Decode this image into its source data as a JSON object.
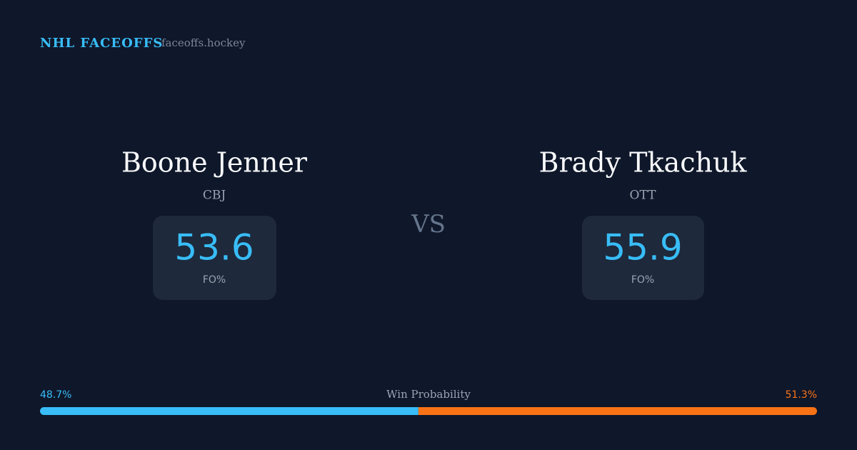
{
  "header": {
    "brand": "NHL FACEOFFS",
    "site": "faceoffs.hockey"
  },
  "players": [
    {
      "name": "Boone Jenner",
      "team": "CBJ",
      "fo_pct": 53.6,
      "fo_label": "FO%"
    },
    {
      "name": "Brady Tkachuk",
      "team": "OTT",
      "fo_pct": 55.9,
      "fo_label": "FO%"
    }
  ],
  "versus": "VS",
  "win_probability": {
    "label": "Win Probability",
    "left": {
      "value": 48.7,
      "label": "48.7%"
    },
    "right": {
      "value": 51.3,
      "label": "51.3%"
    }
  }
}
